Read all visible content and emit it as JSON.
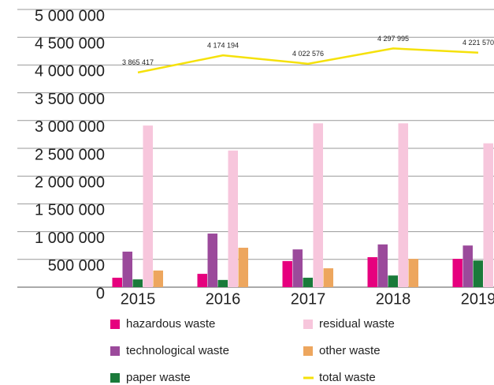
{
  "chart_data": {
    "type": "bar",
    "categories": [
      "2015",
      "2016",
      "2017",
      "2018",
      "2019"
    ],
    "series": [
      {
        "name": "hazardous waste",
        "color": "#e6007e",
        "values": [
          170000,
          240000,
          470000,
          540000,
          510000
        ]
      },
      {
        "name": "technological waste",
        "color": "#9b4a9b",
        "values": [
          640000,
          965000,
          680000,
          770000,
          750000
        ]
      },
      {
        "name": "paper waste",
        "color": "#1a7a3a",
        "values": [
          140000,
          130000,
          170000,
          210000,
          480000
        ]
      },
      {
        "name": "residual waste",
        "color": "#f7c6dc",
        "values": [
          2910000,
          2460000,
          2950000,
          2950000,
          2590000
        ]
      },
      {
        "name": "other waste",
        "color": "#eda65e",
        "values": [
          300000,
          710000,
          340000,
          510000,
          null
        ]
      },
      {
        "name": "total waste",
        "color": "#f5e10a",
        "type": "line",
        "values": [
          3865417,
          4174194,
          4022576,
          4297995,
          4221570
        ],
        "value_labels": [
          "3 865 417",
          "4 174 194",
          "4 022 576",
          "4 297 995",
          "4 221 570"
        ]
      }
    ],
    "ylim": [
      0,
      5000000
    ],
    "yticks": [
      0,
      {
        "value": 500000,
        "label": "500 000"
      },
      {
        "value": 1000000,
        "label": "1 000 000"
      },
      {
        "value": 1500000,
        "label": "1 500 000"
      },
      {
        "value": 2000000,
        "label": "2 000 000"
      },
      {
        "value": 2500000,
        "label": "2 500 000"
      },
      {
        "value": 3000000,
        "label": "3 000 000"
      },
      {
        "value": 3500000,
        "label": "3 500 000"
      },
      {
        "value": 4000000,
        "label": "4 000 000"
      },
      {
        "value": 4500000,
        "label": "4 500 000"
      },
      {
        "value": 5000000,
        "label": "5 000 000"
      }
    ],
    "grid": true
  }
}
